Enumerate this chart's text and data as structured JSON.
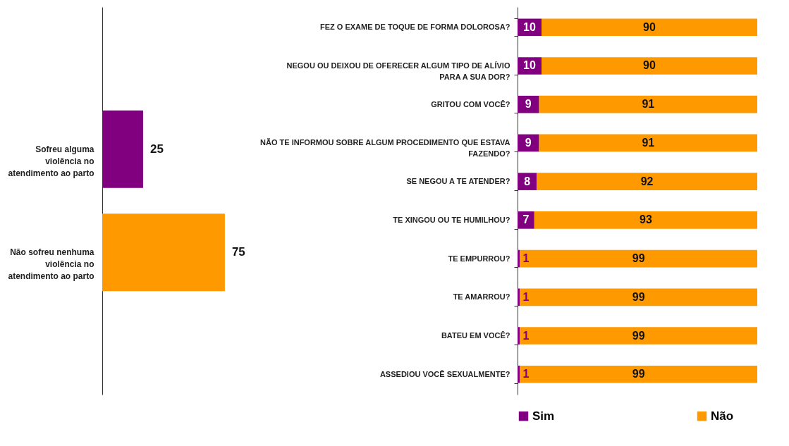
{
  "chart_data": [
    {
      "type": "bar",
      "orientation": "horizontal",
      "categories": [
        "Sofreu alguma violência no atendimento ao parto",
        "Não sofreu nenhuma violência no atendimento ao parto"
      ],
      "values": [
        25,
        75
      ],
      "colors": [
        "#800080",
        "#ff9900"
      ],
      "data_labels": true
    },
    {
      "type": "bar",
      "orientation": "horizontal",
      "stacked": true,
      "categories": [
        "FEZ O EXAME DE TOQUE DE FORMA DOLOROSA?",
        "NEGOU OU DEIXOU DE OFERECER ALGUM TIPO DE ALÍVIO PARA A SUA DOR?",
        "GRITOU COM VOCÊ?",
        "NÃO TE INFORMOU SOBRE ALGUM PROCEDIMENTO QUE ESTAVA FAZENDO?",
        "SE NEGOU A TE ATENDER?",
        "TE XINGOU OU TE HUMILHOU?",
        "TE EMPURROU?",
        "TE AMARROU?",
        "BATEU EM VOCÊ?",
        "ASSEDIOU VOCÊ SEXUALMENTE?"
      ],
      "series": [
        {
          "name": "Sim",
          "color": "#800080",
          "values": [
            10,
            10,
            9,
            9,
            8,
            7,
            1,
            1,
            1,
            1
          ]
        },
        {
          "name": "Não",
          "color": "#ff9900",
          "values": [
            90,
            90,
            91,
            91,
            92,
            93,
            99,
            99,
            99,
            99
          ]
        }
      ],
      "data_labels": true,
      "legend": "bottom"
    }
  ]
}
